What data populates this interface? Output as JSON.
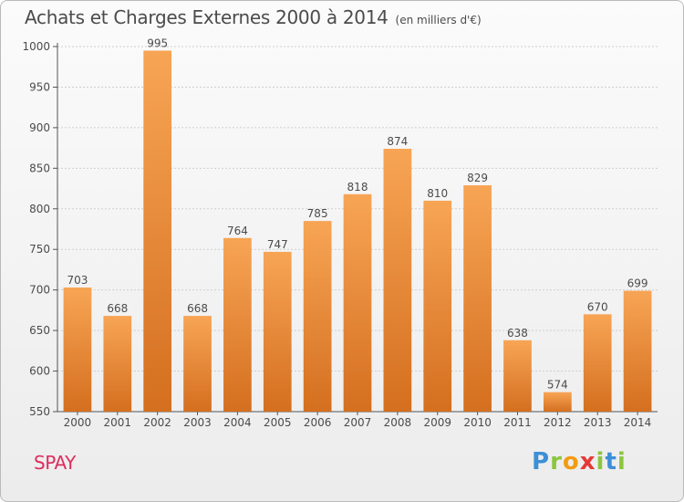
{
  "header": {
    "title": "Achats et Charges Externes 2000 à 2014",
    "subtitle": "(en milliers d'€)"
  },
  "commune": "SPAY",
  "logo": {
    "text": "Proxiti",
    "letters": [
      {
        "char": "P",
        "color": "#3d8fd6"
      },
      {
        "char": "r",
        "color": "#8cc63f"
      },
      {
        "char": "o",
        "color": "#f39c12"
      },
      {
        "char": "x",
        "color": "#e53935"
      },
      {
        "char": "i",
        "color": "#8cc63f"
      },
      {
        "char": "t",
        "color": "#3d8fd6"
      },
      {
        "char": "i",
        "color": "#8cc63f"
      }
    ]
  },
  "colors": {
    "bar_top": "#f7a555",
    "bar_bottom": "#d46f1f",
    "axis": "#555555",
    "grid": "#cfcfcf",
    "text": "#4b4b4b"
  },
  "chart_data": {
    "type": "bar",
    "title": "Achats et Charges Externes 2000 à 2014",
    "subtitle": "(en milliers d'€)",
    "categories": [
      "2000",
      "2001",
      "2002",
      "2003",
      "2004",
      "2005",
      "2006",
      "2007",
      "2008",
      "2009",
      "2010",
      "2011",
      "2012",
      "2013",
      "2014"
    ],
    "values": [
      703,
      668,
      995,
      668,
      764,
      747,
      785,
      818,
      874,
      810,
      829,
      638,
      574,
      670,
      699
    ],
    "ylim": [
      550,
      1000
    ],
    "yticks": [
      550,
      600,
      650,
      700,
      750,
      800,
      850,
      900,
      950,
      1000
    ],
    "grid": true,
    "data_labels": true
  }
}
